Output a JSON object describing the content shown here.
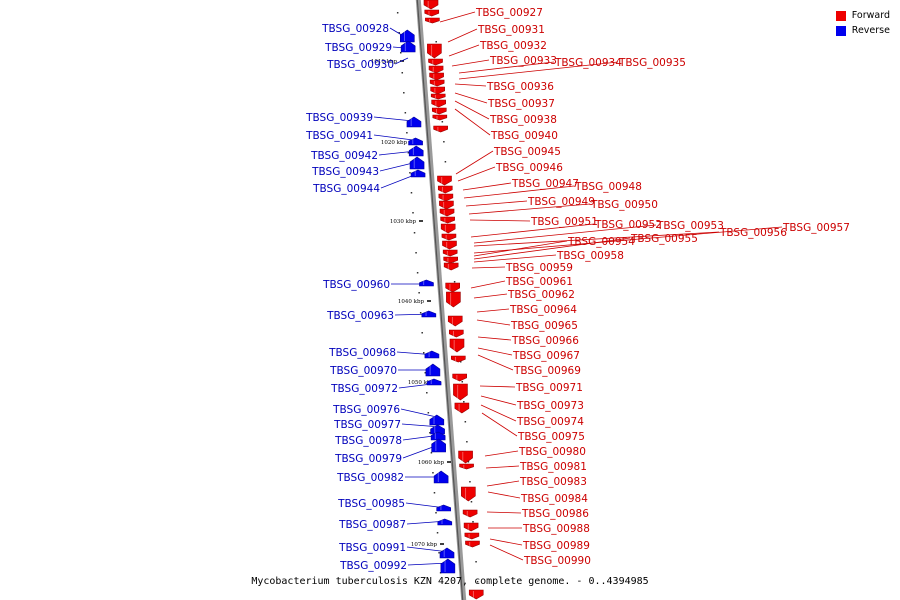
{
  "caption": "Mycobacterium tuberculosis KZN 4207, complete genome. - 0..4394985",
  "legend": {
    "forward_label": "Forward",
    "reverse_label": "Reverse",
    "forward_color": "#ee0000",
    "reverse_color": "#0000ee"
  },
  "tick_labels": [
    "1010 kbp",
    "1020 kbp",
    "1030 kbp",
    "1040 kbp",
    "1050 kbp",
    "1060 kbp",
    "1070 kbp"
  ],
  "forward_genes": [
    "TBSG_00927",
    "TBSG_00931",
    "TBSG_00932",
    "TBSG_00933",
    "TBSG_00934",
    "TBSG_00935",
    "TBSG_00936",
    "TBSG_00937",
    "TBSG_00938",
    "TBSG_00940",
    "TBSG_00945",
    "TBSG_00946",
    "TBSG_00947",
    "TBSG_00948",
    "TBSG_00949",
    "TBSG_00950",
    "TBSG_00951",
    "TBSG_00952",
    "TBSG_00953",
    "TBSG_00956",
    "TBSG_00957",
    "TBSG_00954",
    "TBSG_00955",
    "TBSG_00958",
    "TBSG_00959",
    "TBSG_00961",
    "TBSG_00962",
    "TBSG_00964",
    "TBSG_00965",
    "TBSG_00966",
    "TBSG_00967",
    "TBSG_00969",
    "TBSG_00971",
    "TBSG_00973",
    "TBSG_00974",
    "TBSG_00975",
    "TBSG_00980",
    "TBSG_00981",
    "TBSG_00983",
    "TBSG_00984",
    "TBSG_00986",
    "TBSG_00988",
    "TBSG_00989",
    "TBSG_00990"
  ],
  "reverse_genes": [
    "TBSG_00928",
    "TBSG_00929",
    "TBSG_00930",
    "TBSG_00939",
    "TBSG_00941",
    "TBSG_00942",
    "TBSG_00943",
    "TBSG_00944",
    "TBSG_00960",
    "TBSG_00963",
    "TBSG_00968",
    "TBSG_00970",
    "TBSG_00972",
    "TBSG_00976",
    "TBSG_00977",
    "TBSG_00978",
    "TBSG_00979",
    "TBSG_00982",
    "TBSG_00985",
    "TBSG_00987",
    "TBSG_00991",
    "TBSG_00992"
  ]
}
